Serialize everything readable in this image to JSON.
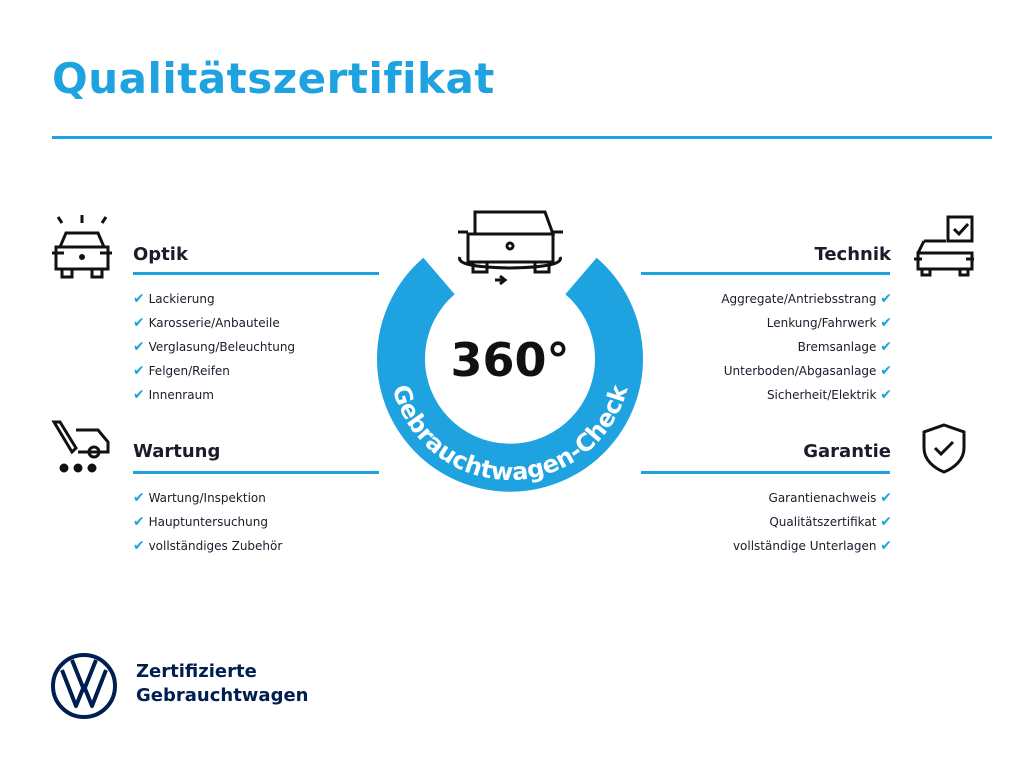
{
  "title": "Qualitätszertifikat",
  "colors": {
    "accent": "#1fa3e0",
    "text": "#1b1b2a",
    "brand_navy": "#001e50"
  },
  "center": {
    "number": "360°",
    "ring_text": "Gebrauchtwagen-Check",
    "icon": "car-rotate-icon"
  },
  "sections": {
    "optik": {
      "title": "Optik",
      "icon": "car-lights-icon",
      "items": [
        "Lackierung",
        "Karosserie/Anbauteile",
        "Verglasung/Beleuchtung",
        "Felgen/Reifen",
        "Innenraum"
      ]
    },
    "wartung": {
      "title": "Wartung",
      "icon": "service-van-icon",
      "items": [
        "Wartung/Inspektion",
        "Hauptuntersuchung",
        "vollständiges Zubehör"
      ]
    },
    "technik": {
      "title": "Technik",
      "icon": "car-checklist-icon",
      "items": [
        "Aggregate/Antriebsstrang",
        "Lenkung/Fahrwerk",
        "Bremsanlage",
        "Unterboden/Abgasanlage",
        "Sicherheit/Elektrik"
      ]
    },
    "garantie": {
      "title": "Garantie",
      "icon": "shield-check-icon",
      "items": [
        "Garantienachweis",
        "Qualitätszertifikat",
        "vollständige Unterlagen"
      ]
    }
  },
  "check_mark": "✔",
  "footer": {
    "line1": "Zertifizierte",
    "line2": "Gebrauchtwagen",
    "logo": "vw-logo"
  }
}
